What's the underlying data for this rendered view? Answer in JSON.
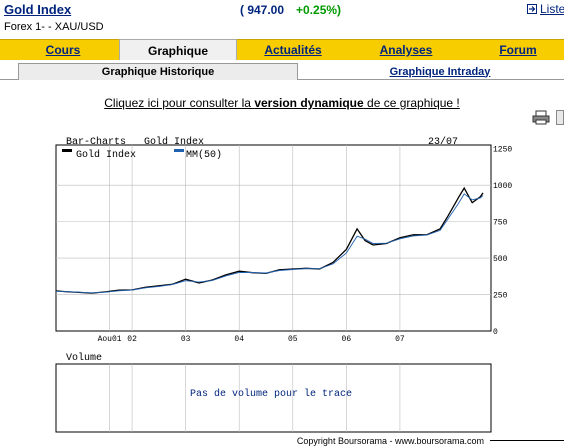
{
  "header": {
    "title": "Gold Index",
    "price": "( 947.00",
    "change": "+0.25%)",
    "subtitle": "Forex 1- - XAU/USD",
    "list_link": "Liste"
  },
  "tabs": [
    {
      "label": "Cours",
      "active": false
    },
    {
      "label": "Graphique",
      "active": true
    },
    {
      "label": "Actualités",
      "active": false
    },
    {
      "label": "Analyses",
      "active": false
    },
    {
      "label": "Forum",
      "active": false
    }
  ],
  "subtabs": [
    {
      "label": "Graphique Historique",
      "active": true
    },
    {
      "label": "Graphique Intraday",
      "active": false
    }
  ],
  "dynamic_link": {
    "prefix": "Cliquez ici pour consulter la ",
    "bold": "version dynamique",
    "suffix": " de ce graphique !"
  },
  "colors": {
    "accent": "#f7cd00",
    "link": "#00247d",
    "positive": "#009a00",
    "ma_line": "#2060b0"
  },
  "chart_data": {
    "type": "line",
    "header_left": "Bar-Charts",
    "title": "Gold Index",
    "date_label": "23/07",
    "series": [
      {
        "name": "Gold Index",
        "x": [
          2000.58,
          2000.75,
          2001.0,
          2001.25,
          2001.5,
          2001.75,
          2002.0,
          2002.25,
          2002.5,
          2002.75,
          2003.0,
          2003.25,
          2003.5,
          2003.75,
          2004.0,
          2004.25,
          2004.5,
          2004.75,
          2005.0,
          2005.25,
          2005.5,
          2005.75,
          2006.0,
          2006.2,
          2006.35,
          2006.5,
          2006.75,
          2007.0,
          2007.25,
          2007.5,
          2007.75,
          2007.9,
          2008.1,
          2008.2,
          2008.35,
          2008.5,
          2008.55
        ],
        "values": [
          275,
          270,
          265,
          260,
          268,
          280,
          282,
          300,
          310,
          320,
          355,
          330,
          350,
          385,
          410,
          400,
          395,
          420,
          425,
          430,
          425,
          470,
          560,
          700,
          620,
          590,
          600,
          640,
          660,
          660,
          700,
          790,
          920,
          980,
          880,
          920,
          947
        ]
      },
      {
        "name": "MM(50)",
        "x": [
          2000.58,
          2000.75,
          2001.0,
          2001.25,
          2001.5,
          2001.75,
          2002.0,
          2002.25,
          2002.5,
          2002.75,
          2003.0,
          2003.25,
          2003.5,
          2003.75,
          2004.0,
          2004.25,
          2004.5,
          2004.75,
          2005.0,
          2005.25,
          2005.5,
          2005.75,
          2006.0,
          2006.2,
          2006.35,
          2006.5,
          2006.75,
          2007.0,
          2007.25,
          2007.5,
          2007.75,
          2007.9,
          2008.1,
          2008.2,
          2008.35,
          2008.5,
          2008.55
        ],
        "values": [
          272,
          270,
          266,
          262,
          266,
          276,
          281,
          296,
          306,
          318,
          345,
          335,
          347,
          378,
          402,
          401,
          398,
          415,
          422,
          428,
          427,
          460,
          535,
          650,
          630,
          600,
          602,
          632,
          652,
          658,
          690,
          770,
          880,
          940,
          900,
          912,
          930
        ]
      }
    ],
    "x_ticks": [
      "Aou01",
      "02",
      "03",
      "04",
      "05",
      "06",
      "07"
    ],
    "y_ticks": [
      "1250",
      "1000",
      "750",
      "500",
      "250",
      "0"
    ],
    "ylim": [
      0,
      1250
    ],
    "grid": true,
    "legend": "top-left",
    "volume_panel": {
      "label": "Volume",
      "message": "Pas de volume pour le trace"
    }
  },
  "footer": "Copyright Boursorama - www.boursorama.com"
}
